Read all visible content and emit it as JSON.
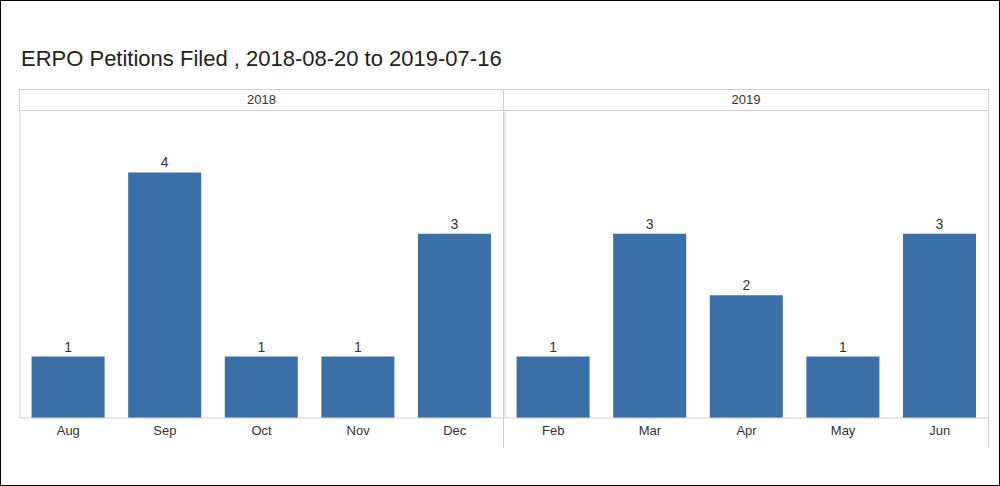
{
  "title": "ERPO Petitions Filed , 2018-08-20 to 2019-07-16",
  "chart_data": [
    {
      "type": "bar",
      "title": "2018",
      "categories": [
        "Aug",
        "Sep",
        "Oct",
        "Nov",
        "Dec"
      ],
      "values": [
        1,
        4,
        1,
        1,
        3
      ],
      "color": "#3a6fa8",
      "ylim": [
        0,
        5
      ],
      "grid": false,
      "data_labels": true,
      "tick_labels": "x"
    },
    {
      "type": "bar",
      "title": "2019",
      "categories": [
        "Feb",
        "Mar",
        "Apr",
        "May",
        "Jun"
      ],
      "values": [
        1,
        3,
        2,
        1,
        3
      ],
      "color": "#3a6fa8",
      "ylim": [
        0,
        5
      ],
      "grid": false,
      "data_labels": true,
      "tick_labels": "x"
    }
  ]
}
